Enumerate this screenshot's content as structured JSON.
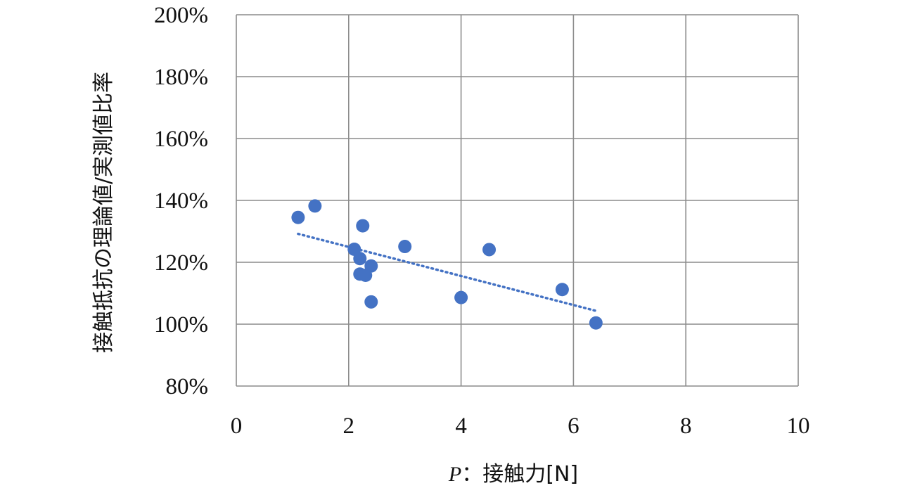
{
  "chart_data": {
    "type": "scatter",
    "title": "",
    "xlabel_italic": "P",
    "xlabel_rest": "：接触力[N]",
    "ylabel": "接触抵抗の理論値/実測値比率",
    "xlim": [
      0,
      10
    ],
    "ylim": [
      0.8,
      2.0
    ],
    "x_ticks": [
      0,
      2,
      4,
      6,
      8,
      10
    ],
    "x_tick_labels": [
      "0",
      "2",
      "4",
      "6",
      "8",
      "10"
    ],
    "y_ticks": [
      0.8,
      1.0,
      1.2,
      1.4,
      1.6,
      1.8,
      2.0
    ],
    "y_tick_labels": [
      "80%",
      "100%",
      "120%",
      "140%",
      "160%",
      "180%",
      "200%"
    ],
    "grid": true,
    "legend": "none",
    "series": [
      {
        "points": [
          {
            "x": 1.1,
            "y": 1.345
          },
          {
            "x": 1.4,
            "y": 1.382
          },
          {
            "x": 2.1,
            "y": 1.242
          },
          {
            "x": 2.2,
            "y": 1.212
          },
          {
            "x": 2.2,
            "y": 1.162
          },
          {
            "x": 2.25,
            "y": 1.318
          },
          {
            "x": 2.3,
            "y": 1.158
          },
          {
            "x": 2.4,
            "y": 1.188
          },
          {
            "x": 2.4,
            "y": 1.072
          },
          {
            "x": 3.0,
            "y": 1.251
          },
          {
            "x": 4.0,
            "y": 1.086
          },
          {
            "x": 4.5,
            "y": 1.241
          },
          {
            "x": 5.8,
            "y": 1.112
          },
          {
            "x": 6.4,
            "y": 1.004
          }
        ],
        "trendline": {
          "type": "linear",
          "x_range": [
            1.1,
            6.4
          ],
          "y_at_start": 1.292,
          "y_at_end": 1.043
        }
      }
    ],
    "colors": {
      "point": "#4472c4",
      "trend": "#4472c4",
      "grid": "#8c8c8c",
      "text": "#111111"
    }
  }
}
